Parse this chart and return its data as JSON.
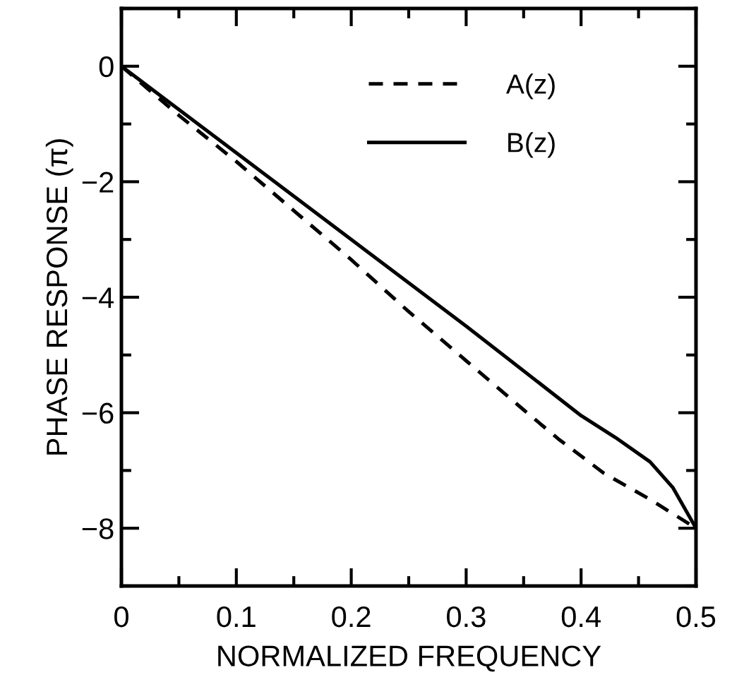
{
  "chart_data": {
    "type": "line",
    "xlabel": "NORMALIZED FREQUENCY",
    "ylabel": "PHASE RESPONSE (π)",
    "xlim": [
      0,
      0.5
    ],
    "ylim": [
      -9,
      1
    ],
    "xticks": [
      0,
      0.1,
      0.2,
      0.3,
      0.4,
      0.5
    ],
    "yticks": [
      0,
      -2,
      -4,
      -6,
      -8
    ],
    "grid": false,
    "legend": "top right",
    "marker": "none",
    "series": [
      {
        "name": "A(z)",
        "color": "#000000",
        "line_style": "dashed",
        "x": [
          0,
          0.05,
          0.1,
          0.15,
          0.2,
          0.25,
          0.3,
          0.35,
          0.38,
          0.42,
          0.46,
          0.5
        ],
        "values": [
          0,
          -0.85,
          -1.65,
          -2.5,
          -3.35,
          -4.25,
          -5.1,
          -5.95,
          -6.45,
          -7.05,
          -7.5,
          -8
        ]
      },
      {
        "name": "B(z)",
        "color": "#000000",
        "line_style": "solid",
        "x": [
          0,
          0.1,
          0.2,
          0.3,
          0.4,
          0.43,
          0.46,
          0.48,
          0.5
        ],
        "values": [
          0,
          -1.5,
          -3.0,
          -4.5,
          -6.05,
          -6.43,
          -6.85,
          -7.3,
          -8
        ]
      }
    ]
  }
}
